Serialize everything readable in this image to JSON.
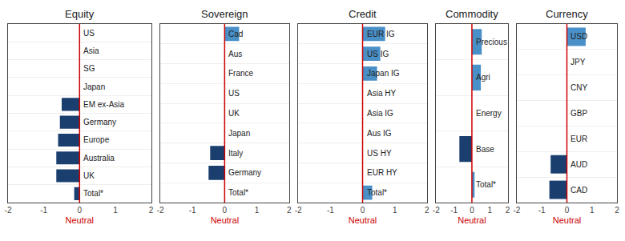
{
  "chart_data": [
    {
      "type": "bar",
      "orientation": "horizontal",
      "title": "Equity",
      "categories": [
        "US",
        "Asia",
        "SG",
        "Japan",
        "EM ex-Asia",
        "Germany",
        "Europe",
        "Australia",
        "UK",
        "Total*"
      ],
      "values": [
        0,
        0,
        0,
        0,
        -0.5,
        -0.55,
        -0.6,
        -0.65,
        -0.65,
        -0.15
      ],
      "colors": [
        "#4a90c8",
        "#4a90c8",
        "#4a90c8",
        "#4a90c8",
        "#1a3f6f",
        "#1a3f6f",
        "#1a3f6f",
        "#1a3f6f",
        "#1a3f6f",
        "#1a3f6f"
      ],
      "xlim": [
        -2,
        2
      ],
      "xticks": [
        -2,
        -1,
        0,
        1,
        2
      ],
      "xlabel": "Neutral",
      "neutral_line": {
        "x": 0,
        "color": "#cc0000"
      },
      "grid": true,
      "tick_labels": "x"
    },
    {
      "type": "bar",
      "orientation": "horizontal",
      "title": "Sovereign",
      "categories": [
        "Cad",
        "Aus",
        "France",
        "US",
        "UK",
        "Japan",
        "Italy",
        "Germany",
        "Total*"
      ],
      "values": [
        0.45,
        0,
        0,
        0,
        0,
        0,
        -0.45,
        -0.5,
        0
      ],
      "colors": [
        "#4a90c8",
        "#4a90c8",
        "#4a90c8",
        "#4a90c8",
        "#4a90c8",
        "#4a90c8",
        "#1a3f6f",
        "#1a3f6f",
        "#4a90c8"
      ],
      "xlim": [
        -2,
        2
      ],
      "xticks": [
        -2,
        -1,
        0,
        1,
        2
      ],
      "xlabel": "Neutral",
      "neutral_line": {
        "x": 0,
        "color": "#cc0000"
      },
      "grid": true,
      "tick_labels": "x"
    },
    {
      "type": "bar",
      "orientation": "horizontal",
      "title": "Credit",
      "categories": [
        "EUR IG",
        "US IG",
        "Japan IG",
        "Asia HY",
        "Asia IG",
        "Aus IG",
        "US HY",
        "EUR HY",
        "Total*"
      ],
      "values": [
        0.7,
        0.55,
        0.45,
        0,
        0,
        0,
        0,
        0,
        0.3
      ],
      "colors": [
        "#4a90c8",
        "#4a90c8",
        "#4a90c8",
        "#4a90c8",
        "#4a90c8",
        "#4a90c8",
        "#4a90c8",
        "#4a90c8",
        "#4a90c8"
      ],
      "xlim": [
        -2,
        2
      ],
      "xticks": [
        -2,
        -1,
        0,
        1,
        2
      ],
      "xlabel": "Neutral",
      "neutral_line": {
        "x": 0,
        "color": "#cc0000"
      },
      "grid": true,
      "tick_labels": "x"
    },
    {
      "type": "bar",
      "orientation": "horizontal",
      "title": "Commodity",
      "categories": [
        "Precious",
        "Agri",
        "Energy",
        "Base",
        "Total*"
      ],
      "values": [
        0.55,
        0.5,
        0,
        -0.7,
        0.15
      ],
      "colors": [
        "#4a90c8",
        "#4a90c8",
        "#4a90c8",
        "#1a3f6f",
        "#4a90c8"
      ],
      "xlim": [
        -2,
        2
      ],
      "xticks": [
        -2,
        -1,
        0,
        1,
        2
      ],
      "xlabel": "Neutral",
      "neutral_line": {
        "x": 0,
        "color": "#cc0000"
      },
      "grid": true,
      "tick_labels": "x"
    },
    {
      "type": "bar",
      "orientation": "horizontal",
      "title": "Currency",
      "categories": [
        "USD",
        "JPY",
        "CNY",
        "GBP",
        "EUR",
        "AUD",
        "CAD"
      ],
      "values": [
        0.75,
        0,
        0,
        0,
        0,
        -0.65,
        -0.7
      ],
      "colors": [
        "#4a90c8",
        "#4a90c8",
        "#4a90c8",
        "#4a90c8",
        "#4a90c8",
        "#1a3f6f",
        "#1a3f6f"
      ],
      "xlim": [
        -2,
        2
      ],
      "xticks": [
        -2,
        -1,
        0,
        1,
        2
      ],
      "xlabel": "Neutral",
      "neutral_line": {
        "x": 0,
        "color": "#cc0000"
      },
      "grid": true,
      "tick_labels": "x"
    }
  ]
}
